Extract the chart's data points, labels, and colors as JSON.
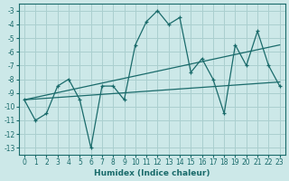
{
  "x": [
    0,
    1,
    2,
    3,
    4,
    5,
    6,
    7,
    8,
    9,
    10,
    11,
    12,
    13,
    14,
    15,
    16,
    17,
    18,
    19,
    20,
    21,
    22,
    23
  ],
  "y_main": [
    -9.5,
    -11.0,
    -10.5,
    -8.5,
    -8.0,
    -9.5,
    -13.0,
    -8.5,
    -8.5,
    -9.5,
    -5.5,
    -3.8,
    -3.0,
    -4.0,
    -3.5,
    -7.5,
    -6.5,
    -8.0,
    -10.5,
    -5.5,
    -7.0,
    -4.5,
    -7.0,
    -8.5
  ],
  "trend1_x": [
    0,
    23
  ],
  "trend1_y": [
    -9.5,
    -5.5
  ],
  "trend2_x": [
    0,
    23
  ],
  "trend2_y": [
    -9.5,
    -8.2
  ],
  "xlabel": "Humidex (Indice chaleur)",
  "bg_color": "#cce8e8",
  "line_color": "#1a6b6b",
  "grid_color": "#aacfcf",
  "ylim": [
    -13.5,
    -2.5
  ],
  "xlim": [
    -0.5,
    23.5
  ],
  "yticks": [
    -13,
    -12,
    -11,
    -10,
    -9,
    -8,
    -7,
    -6,
    -5,
    -4,
    -3
  ],
  "xticks": [
    0,
    1,
    2,
    3,
    4,
    5,
    6,
    7,
    8,
    9,
    10,
    11,
    12,
    13,
    14,
    15,
    16,
    17,
    18,
    19,
    20,
    21,
    22,
    23
  ],
  "xlabel_fontsize": 6.5,
  "tick_fontsize": 5.5
}
